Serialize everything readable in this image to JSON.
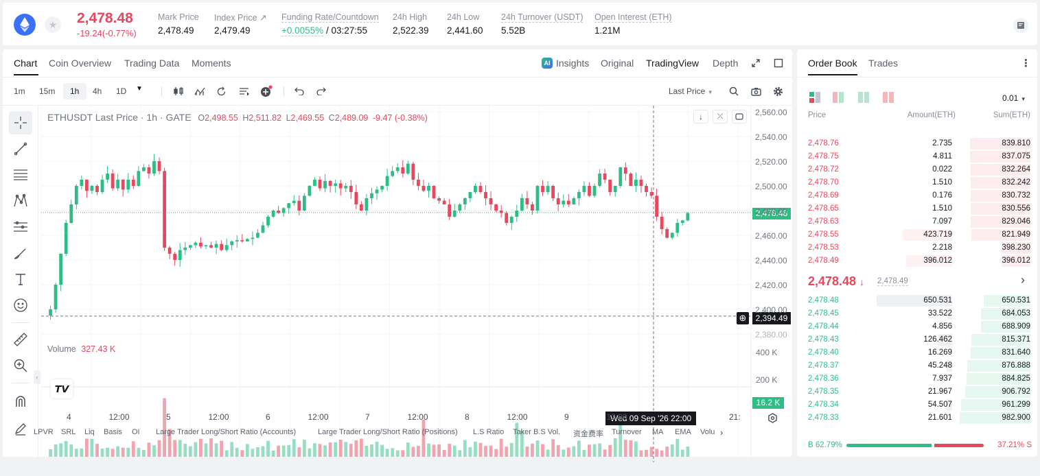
{
  "ticker": {
    "price": "2,478.48",
    "change": "-19.24(-0.77%)",
    "stats": [
      {
        "label": "Mark Price",
        "value": "2,478.49"
      },
      {
        "label": "Index Price",
        "value": "2,479.49"
      },
      {
        "label": "Funding Rate/Countdown",
        "value_a": "+0.0055%",
        "value_b": "/ 03:27:55"
      },
      {
        "label": "24h High",
        "value": "2,522.39"
      },
      {
        "label": "24h Low",
        "value": "2,441.60"
      },
      {
        "label": "24h Turnover (USDT)",
        "value": "5.52B"
      },
      {
        "label": "Open Interest (ETH)",
        "value": "1.21M"
      }
    ]
  },
  "chart_tabs": [
    "Chart",
    "Coin Overview",
    "Trading Data",
    "Moments"
  ],
  "view_tabs": {
    "insights": "Insights",
    "original": "Original",
    "tradingview": "TradingView",
    "depth": "Depth"
  },
  "timeframes": [
    "1m",
    "15m",
    "1h",
    "4h",
    "1D"
  ],
  "price_source": "Last Price",
  "legend": {
    "symbol": "ETHUSDT Last Price · 1h · GATE",
    "o_lbl": "O",
    "o": "2,498.55",
    "h_lbl": "H",
    "h": "2,511.82",
    "l_lbl": "L",
    "l": "2,469.55",
    "c_lbl": "C",
    "c": "2,489.09",
    "chg": "-9.47 (-0.38%)"
  },
  "volume": {
    "label": "Volume",
    "value": "327.43 K",
    "axis": [
      "400 K",
      "200 K"
    ],
    "last": "16.2 K"
  },
  "price_axis": [
    "2,560.00",
    "2,540.00",
    "2,520.00",
    "2,500.00",
    "2,480.00",
    "2,460.00",
    "2,440.00",
    "2,420.00",
    "2,400.00",
    "2,380.00"
  ],
  "price_markers": {
    "last": "2,478.48",
    "cursor": "2,394.49"
  },
  "time_axis": [
    "4",
    "12:00",
    "5",
    "12:00",
    "6",
    "12:00",
    "7",
    "12:00",
    "8",
    "12:00",
    "9",
    "12:00",
    "21:"
  ],
  "crosshair_time": "Wed 09 Sep '26   22:00",
  "indicators": [
    "LPVR",
    "SRL",
    "Liq",
    "Basis",
    "OI",
    "Large Trader Long/Short Ratio (Accounts)",
    "Large Trader Long/Short Ratio (Positions)",
    "L.S Ratio",
    "Taker B.S Vol.",
    "资金费率",
    "Turnover",
    "MA",
    "EMA",
    "Volu"
  ],
  "orderbook": {
    "tabs": [
      "Order Book",
      "Trades"
    ],
    "precision": "0.01",
    "headers": [
      "Price",
      "Amount(ETH)",
      "Sum(ETH)"
    ],
    "asks": [
      [
        "2,478.76",
        "2.735",
        "839.810"
      ],
      [
        "2,478.75",
        "4.811",
        "837.075"
      ],
      [
        "2,478.72",
        "0.022",
        "832.264"
      ],
      [
        "2,478.70",
        "1.510",
        "832.242"
      ],
      [
        "2,478.69",
        "0.176",
        "830.732"
      ],
      [
        "2,478.65",
        "1.510",
        "830.556"
      ],
      [
        "2,478.63",
        "7.097",
        "829.046"
      ],
      [
        "2,478.55",
        "423.719",
        "821.949"
      ],
      [
        "2,478.53",
        "2.218",
        "398.230"
      ],
      [
        "2,478.49",
        "396.012",
        "396.012"
      ]
    ],
    "mid_price": "2,478.48",
    "mid_mark": "2,478.49",
    "bids": [
      [
        "2,478.48",
        "650.531",
        "650.531"
      ],
      [
        "2,478.45",
        "33.522",
        "684.053"
      ],
      [
        "2,478.44",
        "4.856",
        "688.909"
      ],
      [
        "2,478.43",
        "126.462",
        "815.371"
      ],
      [
        "2,478.40",
        "16.269",
        "831.640"
      ],
      [
        "2,478.37",
        "45.248",
        "876.888"
      ],
      [
        "2,478.36",
        "7.937",
        "884.825"
      ],
      [
        "2,478.35",
        "21.967",
        "906.792"
      ],
      [
        "2,478.34",
        "54.507",
        "961.299"
      ],
      [
        "2,478.33",
        "21.601",
        "982.900"
      ]
    ],
    "buy_ratio": "B 62.79%",
    "sell_ratio": "37.21% S",
    "buy_fraction": 0.6279
  },
  "colors": {
    "up": "#2ebd85",
    "down": "#e8475d"
  }
}
